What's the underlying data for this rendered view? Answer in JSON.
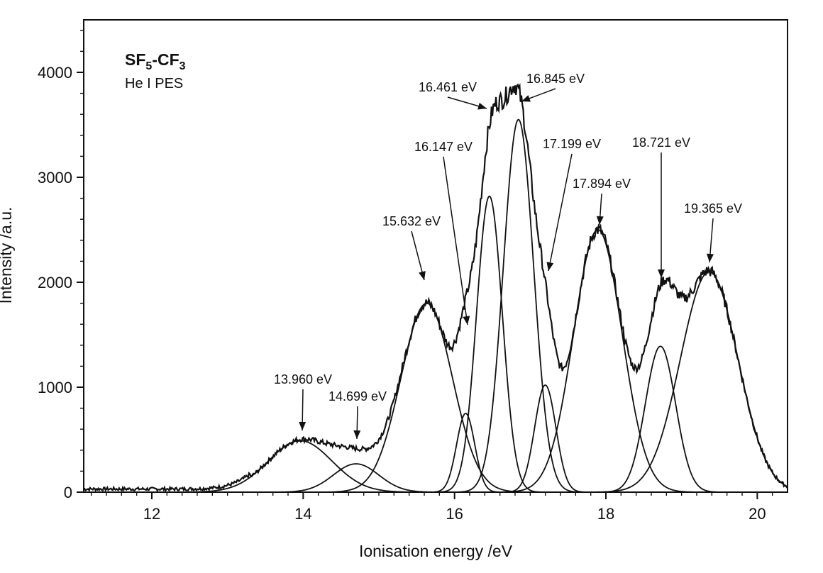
{
  "chart_data": {
    "type": "line",
    "title": "",
    "inset_title": {
      "main": "SF",
      "sub1": "5",
      "mid": "-CF",
      "sub2": "3"
    },
    "inset_subtitle": "He I PES",
    "xlabel": "Ionisation energy /eV",
    "ylabel": "Intensity /a.u.",
    "xlim": [
      11.1,
      20.4
    ],
    "ylim": [
      0,
      4500
    ],
    "xticks": [
      12,
      14,
      16,
      18,
      20
    ],
    "yticks": [
      0,
      1000,
      2000,
      3000,
      4000
    ],
    "grid": false,
    "legend": "none",
    "line_color": "#111111",
    "components": [
      {
        "center": 13.96,
        "amplitude": 490,
        "sigma": 0.42
      },
      {
        "center": 14.699,
        "amplitude": 270,
        "sigma": 0.3
      },
      {
        "center": 15.632,
        "amplitude": 1800,
        "sigma": 0.34
      },
      {
        "center": 16.147,
        "amplitude": 750,
        "sigma": 0.12
      },
      {
        "center": 16.461,
        "amplitude": 2820,
        "sigma": 0.17
      },
      {
        "center": 16.845,
        "amplitude": 3550,
        "sigma": 0.2
      },
      {
        "center": 17.199,
        "amplitude": 1020,
        "sigma": 0.14
      },
      {
        "center": 17.894,
        "amplitude": 2500,
        "sigma": 0.32
      },
      {
        "center": 18.721,
        "amplitude": 1390,
        "sigma": 0.2
      },
      {
        "center": 19.365,
        "amplitude": 2100,
        "sigma": 0.38
      }
    ],
    "annotations": [
      {
        "text": "13.960 eV",
        "x": 13.96,
        "y": 490
      },
      {
        "text": "14.699 eV",
        "x": 14.699,
        "y": 450
      },
      {
        "text": "15.632 eV",
        "x": 15.632,
        "y": 1980
      },
      {
        "text": "16.147 eV",
        "x": 16.147,
        "y": 1630
      },
      {
        "text": "16.461 eV",
        "x": 16.461,
        "y": 3700
      },
      {
        "text": "16.845 eV",
        "x": 16.845,
        "y": 3790
      },
      {
        "text": "17.199 eV",
        "x": 17.199,
        "y": 2100
      },
      {
        "text": "17.894 eV",
        "x": 17.894,
        "y": 2550
      },
      {
        "text": "18.721 eV",
        "x": 18.721,
        "y": 2050
      },
      {
        "text": "19.365 eV",
        "x": 19.365,
        "y": 2230
      }
    ]
  }
}
